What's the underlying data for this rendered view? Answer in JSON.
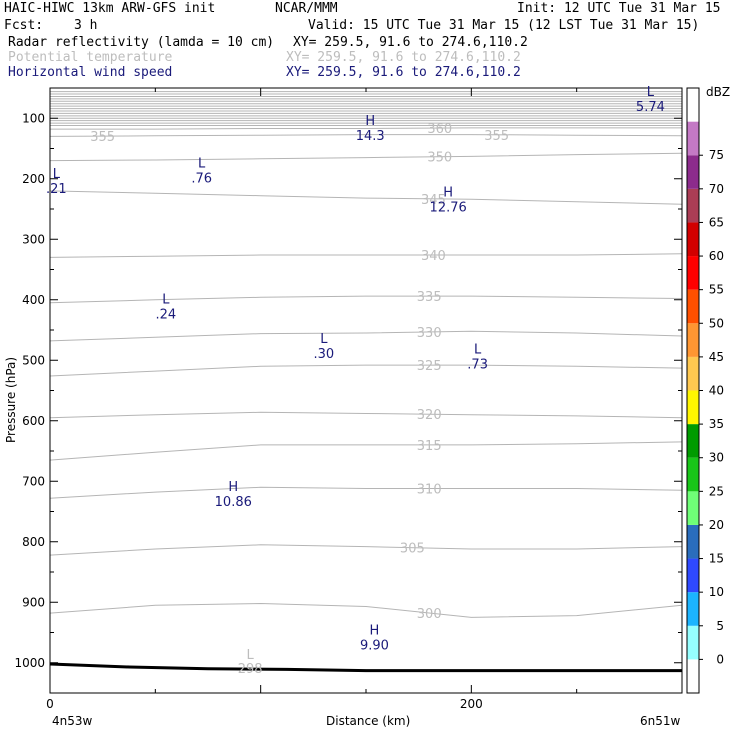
{
  "header": {
    "model": "HAIC-HIWC 13km ARW-GFS init",
    "org": "NCAR/MMM",
    "init": "Init: 12 UTC Tue 31 Mar 15",
    "fcst_label": "Fcst:",
    "fcst_value": "3 h",
    "valid": "Valid: 15 UTC Tue 31 Mar 15 (12 LST Tue 31 Mar 15)",
    "fields": [
      {
        "name": "Radar reflectivity (lamda = 10 cm)",
        "xy": "XY= 259.5, 91.6 to 274.6,110.2",
        "color": "#000000"
      },
      {
        "name": "Potential temperature",
        "xy": "XY= 259.5, 91.6 to 274.6,110.2",
        "color": "#bdbdbd"
      },
      {
        "name": "Horizontal wind speed",
        "xy": "XY= 259.5, 91.6 to 274.6,110.2",
        "color": "#1a1a7a"
      }
    ]
  },
  "chart_data": {
    "type": "cross-section",
    "xlabel": "Distance (km)",
    "ylabel": "Pressure (hPa)",
    "xlim": [
      0,
      300
    ],
    "ylim": [
      1050,
      50
    ],
    "xticks": [
      0,
      200
    ],
    "x_left_label": "4n53w",
    "x_right_label": "6n51w",
    "yticks": [
      100,
      200,
      300,
      400,
      500,
      600,
      700,
      800,
      900,
      1000
    ],
    "theta_isentropes": [
      {
        "label": "300",
        "p": [
          918,
          905,
          902,
          907,
          925,
          922,
          905
        ],
        "label_x": 180
      },
      {
        "label": "305",
        "p": [
          822,
          812,
          805,
          808,
          812,
          812,
          808
        ],
        "label_x": 172
      },
      {
        "label": "310",
        "p": [
          728,
          718,
          710,
          712,
          712,
          712,
          715
        ],
        "label_x": 180
      },
      {
        "label": "315",
        "p": [
          665,
          652,
          640,
          640,
          640,
          638,
          635
        ],
        "label_x": 180
      },
      {
        "label": "320",
        "p": [
          595,
          590,
          586,
          588,
          590,
          592,
          595
        ],
        "label_x": 180
      },
      {
        "label": "325",
        "p": [
          526,
          518,
          510,
          508,
          508,
          510,
          513
        ],
        "label_x": 180
      },
      {
        "label": "330",
        "p": [
          468,
          462,
          456,
          455,
          452,
          455,
          460
        ],
        "label_x": 180
      },
      {
        "label": "335",
        "p": [
          405,
          400,
          396,
          394,
          394,
          396,
          398
        ],
        "label_x": 180
      },
      {
        "label": "340",
        "p": [
          330,
          328,
          326,
          326,
          326,
          326,
          324
        ],
        "label_x": 182
      },
      {
        "label": "345",
        "p": [
          220,
          224,
          228,
          232,
          234,
          238,
          242
        ],
        "label_x": 182
      },
      {
        "label": "350",
        "p": [
          170,
          169,
          167,
          165,
          163,
          160,
          158
        ],
        "label_x": 185
      },
      {
        "label": "355",
        "p": [
          130,
          129,
          128,
          127,
          127,
          128,
          129
        ],
        "label_x": 25
      },
      {
        "label": "360",
        "p": [
          118,
          118,
          117,
          117,
          116,
          116,
          116
        ],
        "label_x": 185
      }
    ],
    "theta_label_360b": {
      "label": "355",
      "x": 212,
      "p": 128
    },
    "theta_low": {
      "letter": "L",
      "value": "298",
      "x": 95,
      "p": 1000
    },
    "wind_extrema": [
      {
        "letter": "L",
        "value": "5.74",
        "x": 285,
        "p": 80
      },
      {
        "letter": "H",
        "value": "14.3",
        "x": 152,
        "p": 128
      },
      {
        "letter": "L",
        "value": ".21",
        "x": 3,
        "p": 215
      },
      {
        "letter": "L",
        "value": ".76",
        "x": 72,
        "p": 198
      },
      {
        "letter": "H",
        "value": "12.76",
        "x": 189,
        "p": 246
      },
      {
        "letter": "L",
        "value": ".24",
        "x": 55,
        "p": 423
      },
      {
        "letter": "L",
        "value": ".30",
        "x": 130,
        "p": 488
      },
      {
        "letter": "L",
        "value": ".73",
        "x": 203,
        "p": 505
      },
      {
        "letter": "H",
        "value": "10.86",
        "x": 87,
        "p": 733
      },
      {
        "letter": "H",
        "value": "9.90",
        "x": 154,
        "p": 970
      }
    ],
    "terrain_p": [
      1002,
      1007,
      1010,
      1011,
      1013,
      1013,
      1013,
      1013,
      1013
    ],
    "colorbar": {
      "unit": "dBZ",
      "levels": [
        "0",
        "5",
        "10",
        "15",
        "20",
        "25",
        "30",
        "35",
        "40",
        "45",
        "50",
        "55",
        "60",
        "65",
        "70",
        "75"
      ],
      "colors": [
        "#ffffff",
        "#96ffff",
        "#1cb4ff",
        "#2f49ff",
        "#2a6dbc",
        "#6fff77",
        "#19c619",
        "#009b00",
        "#fff600",
        "#ffc850",
        "#ff9632",
        "#ff5000",
        "#ff0000",
        "#d20000",
        "#ab3d55",
        "#8c2b8c",
        "#c479c5",
        "#ffffff"
      ]
    }
  }
}
